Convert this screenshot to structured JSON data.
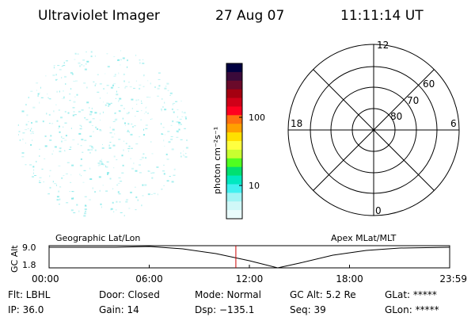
{
  "header": {
    "instrument": "Ultraviolet Imager",
    "date": "27 Aug 07",
    "time": "11:11:14 UT"
  },
  "colorbar": {
    "unit_label": "photon cm⁻²s⁻¹",
    "tick_labels": [
      "100",
      "10"
    ],
    "colors": [
      "#000040",
      "#3a0a3a",
      "#6a0a2a",
      "#a40010",
      "#d00018",
      "#ff0020",
      "#ff7010",
      "#ffa000",
      "#ffe000",
      "#ffff40",
      "#c8ff30",
      "#50ff20",
      "#00e070",
      "#00e8c0",
      "#40f0f0",
      "#a0f4f4",
      "#d0f8f8",
      "#eafcfc"
    ]
  },
  "polar_grid": {
    "mlt_labels": [
      "12",
      "18",
      "6",
      "0"
    ],
    "lat_labels": [
      "60",
      "70",
      "80"
    ]
  },
  "timeline": {
    "left_title": "Geographic Lat/Lon",
    "right_title": "Apex MLat/MLT",
    "axis_title": "GC Alt",
    "y_ticks": [
      "9.0",
      "1.8"
    ],
    "x_ticks": [
      "00:00",
      "06:00",
      "12:00",
      "18:00",
      "23:59"
    ],
    "current_time_hours": 11.19,
    "marker_color": "#cc0000"
  },
  "footer": {
    "filter": "Flt: LBHL",
    "ip": "IP: 36.0",
    "door": "Door: Closed",
    "gain": "Gain: 14",
    "mode": "Mode: Normal",
    "dsp": "Dsp: −135.1",
    "gc_alt": "GC Alt: 5.2 Re",
    "seq": "Seq: 39",
    "glat": "GLat: *****",
    "glon": "GLon: *****"
  },
  "image_panel": {
    "speckle_color": "#7fe8e8"
  }
}
